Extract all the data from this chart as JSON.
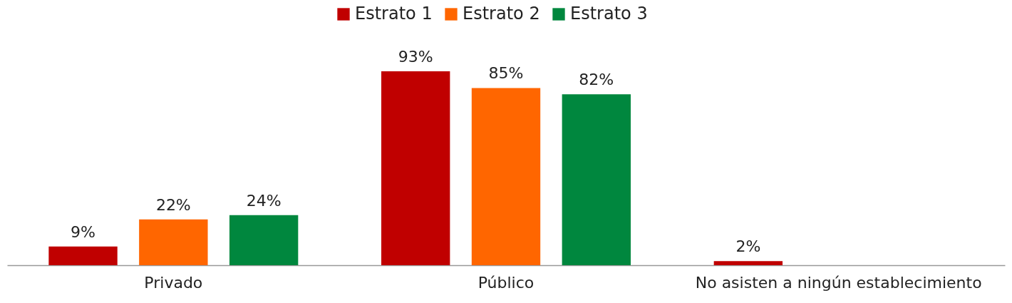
{
  "chart_data": {
    "type": "bar",
    "categories": [
      "Privado",
      "Público",
      "No asisten a ningún establecimiento"
    ],
    "series": [
      {
        "name": "Estrato 1",
        "color": "#c00000",
        "values": [
          9,
          93,
          2
        ],
        "value_labels": [
          "9%",
          "93%",
          "2%"
        ]
      },
      {
        "name": "Estrato 2",
        "color": "#ff6600",
        "values": [
          22,
          85,
          null
        ],
        "value_labels": [
          "22%",
          "85%",
          null
        ]
      },
      {
        "name": "Estrato 3",
        "color": "#00873e",
        "values": [
          24,
          82,
          null
        ],
        "value_labels": [
          "24%",
          "82%",
          null
        ]
      }
    ],
    "legend": "top",
    "grid": false
  }
}
